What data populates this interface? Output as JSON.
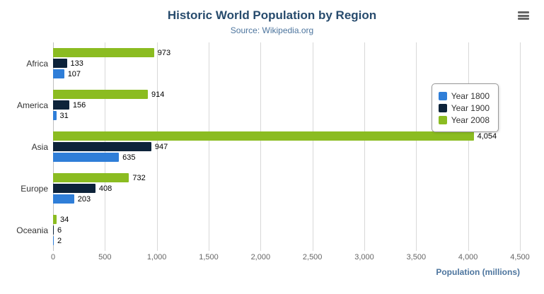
{
  "title": "Historic World Population by Region",
  "subtitle": "Source: Wikipedia.org",
  "xaxis_title": "Population (millions)",
  "chart_data": {
    "type": "bar",
    "orientation": "horizontal",
    "title": "Historic World Population by Region",
    "subtitle": "Source: Wikipedia.org",
    "xlabel": "Population (millions)",
    "categories": [
      "Africa",
      "America",
      "Asia",
      "Europe",
      "Oceania"
    ],
    "series": [
      {
        "name": "Year 1800",
        "color": "#2f7ed8",
        "values": [
          107,
          31,
          635,
          203,
          2
        ]
      },
      {
        "name": "Year 1900",
        "color": "#0d233a",
        "values": [
          133,
          156,
          947,
          408,
          6
        ]
      },
      {
        "name": "Year 2008",
        "color": "#8bbc21",
        "values": [
          973,
          914,
          4054,
          732,
          34
        ]
      }
    ],
    "xlim": [
      0,
      4500
    ],
    "tick_step": 500,
    "grid": true,
    "legend_position": "right"
  }
}
